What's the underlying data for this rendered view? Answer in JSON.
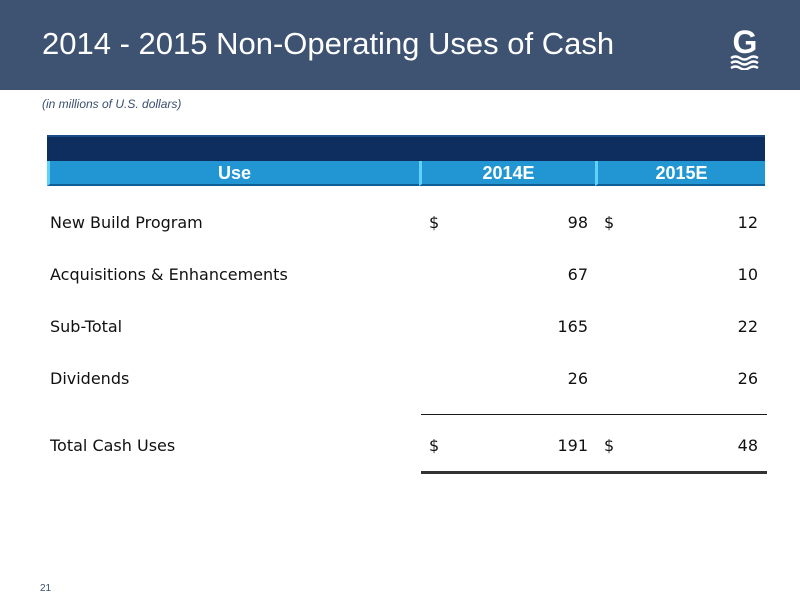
{
  "slide": {
    "title": "2014 - 2015 Non-Operating Uses of Cash",
    "subtitle": "(in millions of U.S. dollars)",
    "page_number": "21",
    "logo_letter": "G"
  },
  "table": {
    "headers": [
      "Use",
      "2014E",
      "2015E"
    ],
    "rows": [
      {
        "label": "New Build Program",
        "cur1": "$",
        "v2014": "98",
        "cur2": "$",
        "v2015": "12"
      },
      {
        "label": "Acquisitions & Enhancements",
        "cur1": "",
        "v2014": "67",
        "cur2": "",
        "v2015": "10"
      },
      {
        "label": "Sub-Total",
        "cur1": "",
        "v2014": "165",
        "cur2": "",
        "v2015": "22"
      },
      {
        "label": "Dividends",
        "cur1": "",
        "v2014": "26",
        "cur2": "",
        "v2015": "26"
      },
      {
        "label": "Total Cash Uses",
        "cur1": "$",
        "v2014": "191",
        "cur2": "$",
        "v2015": "48"
      }
    ]
  },
  "colors": {
    "title_bar": "#3e5272",
    "header_dark": "#0d2e5e",
    "header_blue": "#2196d3"
  }
}
